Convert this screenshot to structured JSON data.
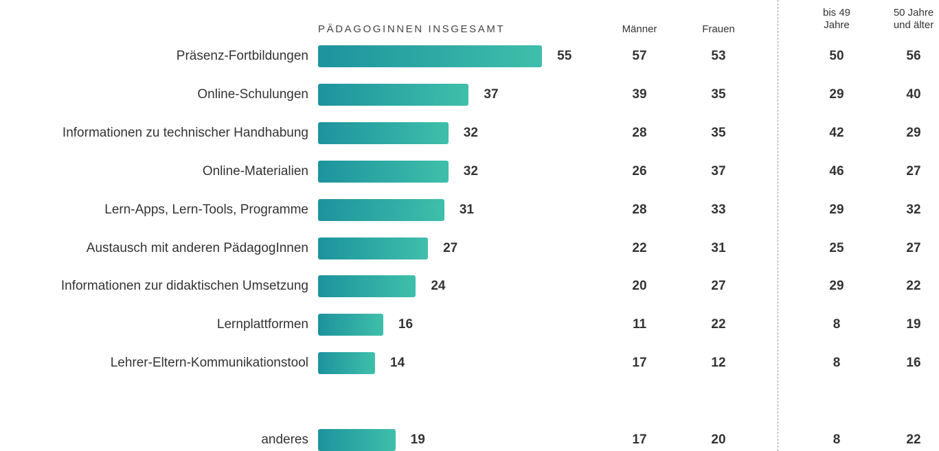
{
  "chart_data": {
    "type": "bar",
    "title": "PÄDAGOGINNEN INSGESAMT",
    "categories": [
      "Präsenz-Fortbildungen",
      "Online-Schulungen",
      "Informationen zu technischer Handhabung",
      "Online-Materialien",
      "Lern-Apps, Lern-Tools, Programme",
      "Austausch mit anderen PädagogInnen",
      "Informationen zur didaktischen Umsetzung",
      "Lernplattformen",
      "Lehrer-Eltern-Kommunikationstool",
      "anderes"
    ],
    "values": [
      55,
      37,
      32,
      32,
      31,
      27,
      24,
      16,
      14,
      19
    ],
    "color": [
      "#1d939d",
      "#3fbfaa"
    ],
    "series": [
      {
        "name": "Männer",
        "values": [
          57,
          39,
          28,
          26,
          28,
          22,
          20,
          11,
          17,
          17
        ]
      },
      {
        "name": "Frauen",
        "values": [
          53,
          35,
          35,
          37,
          33,
          31,
          27,
          22,
          12,
          20
        ]
      },
      {
        "name": "bis 49 Jahre",
        "values": [
          50,
          29,
          42,
          46,
          29,
          25,
          29,
          8,
          8,
          8
        ]
      },
      {
        "name": "50 Jahre und älter",
        "values": [
          56,
          40,
          29,
          27,
          32,
          27,
          22,
          19,
          16,
          22
        ]
      }
    ]
  }
}
